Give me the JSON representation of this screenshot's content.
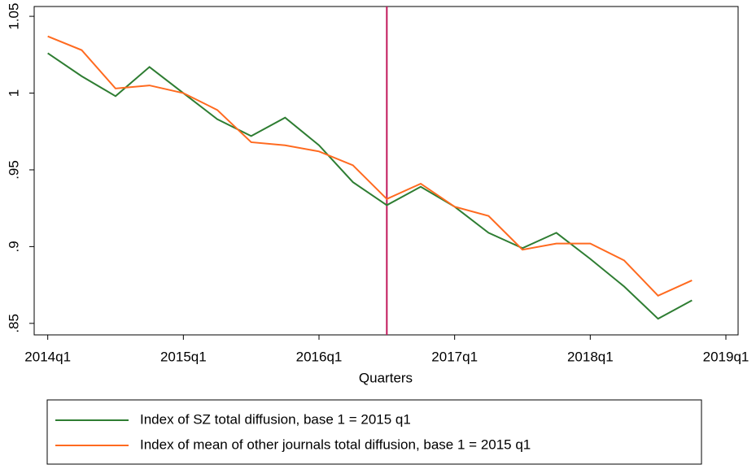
{
  "chart_data": {
    "type": "line",
    "x_label": "Quarters",
    "x": [
      216,
      217,
      218,
      219,
      220,
      221,
      222,
      223,
      224,
      225,
      226,
      227,
      228,
      229,
      230,
      231,
      232,
      233,
      234,
      235
    ],
    "series": [
      {
        "name": "Index of SZ total diffusion, base 1 = 2015 q1",
        "color": "#2e7d32",
        "values": [
          1.026,
          1.011,
          0.998,
          1.017,
          1.0,
          0.983,
          0.972,
          0.984,
          0.966,
          0.942,
          0.927,
          0.939,
          0.926,
          0.909,
          0.899,
          0.909,
          0.892,
          0.874,
          0.853,
          0.865
        ]
      },
      {
        "name": "Index of mean of other journals total diffusion, base 1 = 2015 q1",
        "color": "#ff6a1f",
        "values": [
          1.037,
          1.028,
          1.003,
          1.005,
          1.0,
          0.989,
          0.968,
          0.966,
          0.962,
          0.953,
          0.931,
          0.941,
          0.926,
          0.92,
          0.898,
          0.902,
          0.902,
          0.891,
          0.868,
          0.878
        ]
      }
    ],
    "vline": 226,
    "vline_color": "#c2185b",
    "xlim": [
      215.6,
      236.36
    ],
    "xticks": [
      {
        "value": 216,
        "label": "2014q1"
      },
      {
        "value": 220,
        "label": "2015q1"
      },
      {
        "value": 224,
        "label": "2016q1"
      },
      {
        "value": 228,
        "label": "2017q1"
      },
      {
        "value": 232,
        "label": "2018q1"
      },
      {
        "value": 236,
        "label": "2019q1"
      }
    ],
    "ylim": [
      0.8425,
      1.0564
    ],
    "yticks": [
      {
        "value": 0.85,
        "label": ".85"
      },
      {
        "value": 0.9,
        "label": ".9"
      },
      {
        "value": 0.95,
        "label": ".95"
      },
      {
        "value": 1,
        "label": "1"
      },
      1.05
    ]
  }
}
